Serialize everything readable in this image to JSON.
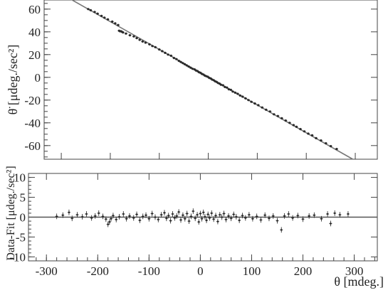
{
  "chart_data": [
    {
      "type": "scatter",
      "panel": "top",
      "xlabel": "",
      "ylabel": "θ̈ [μdeg./sec²]",
      "xlim": [
        -335,
        345
      ],
      "ylim": [
        -72,
        68
      ],
      "yticks": [
        -60,
        -40,
        -20,
        0,
        20,
        40,
        60
      ],
      "fit_line": {
        "x1": -280,
        "y1": 68.5,
        "x2": 295,
        "y2": -72
      },
      "series": [
        {
          "points": [
            [
              -245,
              60.0
            ],
            [
              -240,
              59.0
            ],
            [
              -232,
              57.5
            ],
            [
              -226,
              56.0
            ],
            [
              -218,
              54.0
            ],
            [
              -212,
              52.5
            ],
            [
              -205,
              51.0
            ],
            [
              -196,
              49.0
            ],
            [
              -190,
              47.5
            ],
            [
              -184,
              46.0
            ],
            [
              -182,
              41.0
            ],
            [
              -180,
              40.5
            ],
            [
              -178,
              40.5
            ],
            [
              -176,
              40.0
            ],
            [
              -174,
              39.5
            ],
            [
              -168,
              38.5
            ],
            [
              -160,
              37.0
            ],
            [
              -152,
              36.0
            ],
            [
              -146,
              34.5
            ],
            [
              -140,
              33.0
            ],
            [
              -134,
              31.5
            ],
            [
              -128,
              30.5
            ],
            [
              -120,
              29.0
            ],
            [
              -114,
              27.5
            ],
            [
              -108,
              26.5
            ],
            [
              -100,
              24.5
            ],
            [
              -94,
              23.0
            ],
            [
              -88,
              21.5
            ],
            [
              -82,
              20.0
            ],
            [
              -76,
              19.0
            ],
            [
              -70,
              17.0
            ],
            [
              -65,
              16.0
            ],
            [
              -60,
              14.5
            ],
            [
              -56,
              13.5
            ],
            [
              -52,
              12.5
            ],
            [
              -48,
              11.5
            ],
            [
              -44,
              10.5
            ],
            [
              -40,
              9.5
            ],
            [
              -36,
              8.5
            ],
            [
              -32,
              7.5
            ],
            [
              -28,
              7.0
            ],
            [
              -25,
              6.0
            ],
            [
              -22,
              5.5
            ],
            [
              -19,
              4.5
            ],
            [
              -16,
              4.0
            ],
            [
              -13,
              3.0
            ],
            [
              -10,
              2.5
            ],
            [
              -7,
              1.5
            ],
            [
              -4,
              1.0
            ],
            [
              -1,
              0.5
            ],
            [
              2,
              -0.5
            ],
            [
              5,
              -1.0
            ],
            [
              8,
              -2.0
            ],
            [
              11,
              -2.5
            ],
            [
              14,
              -3.5
            ],
            [
              17,
              -4.0
            ],
            [
              20,
              -5.0
            ],
            [
              23,
              -5.5
            ],
            [
              26,
              -6.5
            ],
            [
              30,
              -7.0
            ],
            [
              34,
              -8.5
            ],
            [
              38,
              -9.0
            ],
            [
              42,
              -10.5
            ],
            [
              46,
              -11.0
            ],
            [
              50,
              -12.5
            ],
            [
              55,
              -13.5
            ],
            [
              60,
              -14.5
            ],
            [
              65,
              -16.0
            ],
            [
              70,
              -17.0
            ],
            [
              76,
              -18.5
            ],
            [
              82,
              -20.0
            ],
            [
              88,
              -21.5
            ],
            [
              95,
              -23.0
            ],
            [
              102,
              -24.5
            ],
            [
              110,
              -26.5
            ],
            [
              118,
              -28.5
            ],
            [
              126,
              -30.0
            ],
            [
              134,
              -32.5
            ],
            [
              142,
              -34.0
            ],
            [
              150,
              -36.0
            ],
            [
              158,
              -38.0
            ],
            [
              166,
              -40.0
            ],
            [
              174,
              -42.0
            ],
            [
              180,
              -43.5
            ],
            [
              188,
              -45.5
            ],
            [
              196,
              -47.5
            ],
            [
              204,
              -49.5
            ],
            [
              212,
              -51.0
            ],
            [
              220,
              -53.5
            ],
            [
              230,
              -55.5
            ],
            [
              240,
              -58.0
            ],
            [
              250,
              -60.5
            ],
            [
              262,
              -63.0
            ]
          ]
        }
      ]
    },
    {
      "type": "scatter",
      "panel": "bottom",
      "xlabel": "θ [mdeg.]",
      "ylabel": "Data-Fit [μdeg./sec²]",
      "xlim": [
        -335,
        345
      ],
      "ylim": [
        -11,
        11
      ],
      "xticks": [
        -300,
        -200,
        -100,
        0,
        100,
        200,
        300
      ],
      "yticks": [
        -10,
        -5,
        0,
        5,
        10
      ],
      "series": [
        {
          "points": [
            [
              -280,
              0.2
            ],
            [
              -268,
              0.5
            ],
            [
              -256,
              1.2
            ],
            [
              -250,
              -0.3
            ],
            [
              -240,
              0.6
            ],
            [
              -230,
              0.1
            ],
            [
              -222,
              0.8
            ],
            [
              -212,
              -0.2
            ],
            [
              -205,
              0.3
            ],
            [
              -198,
              1.0
            ],
            [
              -190,
              0.2
            ],
            [
              -184,
              -0.5
            ],
            [
              -180,
              -1.8
            ],
            [
              -177,
              -1.2
            ],
            [
              -174,
              -0.4
            ],
            [
              -170,
              0.4
            ],
            [
              -164,
              -0.6
            ],
            [
              -158,
              0.1
            ],
            [
              -150,
              0.8
            ],
            [
              -144,
              -0.4
            ],
            [
              -138,
              0.3
            ],
            [
              -130,
              -0.2
            ],
            [
              -124,
              0.7
            ],
            [
              -118,
              -0.8
            ],
            [
              -112,
              0.2
            ],
            [
              -106,
              0.5
            ],
            [
              -100,
              -0.4
            ],
            [
              -94,
              0.9
            ],
            [
              -88,
              0.0
            ],
            [
              -82,
              -0.6
            ],
            [
              -76,
              0.6
            ],
            [
              -70,
              1.1
            ],
            [
              -66,
              -0.3
            ],
            [
              -62,
              0.4
            ],
            [
              -58,
              -0.9
            ],
            [
              -54,
              0.8
            ],
            [
              -50,
              -0.2
            ],
            [
              -46,
              0.3
            ],
            [
              -42,
              1.3
            ],
            [
              -38,
              -0.7
            ],
            [
              -34,
              0.5
            ],
            [
              -30,
              -0.4
            ],
            [
              -26,
              0.9
            ],
            [
              -22,
              -1.0
            ],
            [
              -18,
              0.2
            ],
            [
              -14,
              1.5
            ],
            [
              -10,
              -0.3
            ],
            [
              -6,
              0.6
            ],
            [
              -3,
              -1.2
            ],
            [
              0,
              0.9
            ],
            [
              3,
              -0.4
            ],
            [
              6,
              1.2
            ],
            [
              9,
              0.1
            ],
            [
              12,
              -0.8
            ],
            [
              15,
              0.7
            ],
            [
              18,
              -0.2
            ],
            [
              22,
              1.0
            ],
            [
              26,
              -0.5
            ],
            [
              30,
              0.4
            ],
            [
              34,
              -1.1
            ],
            [
              38,
              0.6
            ],
            [
              42,
              0.0
            ],
            [
              46,
              0.9
            ],
            [
              50,
              -0.6
            ],
            [
              55,
              0.3
            ],
            [
              60,
              -0.3
            ],
            [
              65,
              0.7
            ],
            [
              70,
              0.1
            ],
            [
              76,
              -0.8
            ],
            [
              82,
              0.4
            ],
            [
              88,
              -0.2
            ],
            [
              95,
              0.6
            ],
            [
              102,
              -0.4
            ],
            [
              110,
              0.2
            ],
            [
              118,
              -0.7
            ],
            [
              126,
              0.5
            ],
            [
              134,
              -0.3
            ],
            [
              142,
              0.3
            ],
            [
              150,
              -0.9
            ],
            [
              158,
              -3.2
            ],
            [
              164,
              0.3
            ],
            [
              172,
              0.8
            ],
            [
              180,
              -0.2
            ],
            [
              190,
              0.4
            ],
            [
              200,
              -0.5
            ],
            [
              212,
              0.3
            ],
            [
              222,
              0.5
            ],
            [
              236,
              -0.4
            ],
            [
              248,
              0.8
            ],
            [
              254,
              -1.6
            ],
            [
              262,
              1.0
            ],
            [
              272,
              0.6
            ],
            [
              288,
              0.8
            ]
          ]
        }
      ]
    }
  ]
}
